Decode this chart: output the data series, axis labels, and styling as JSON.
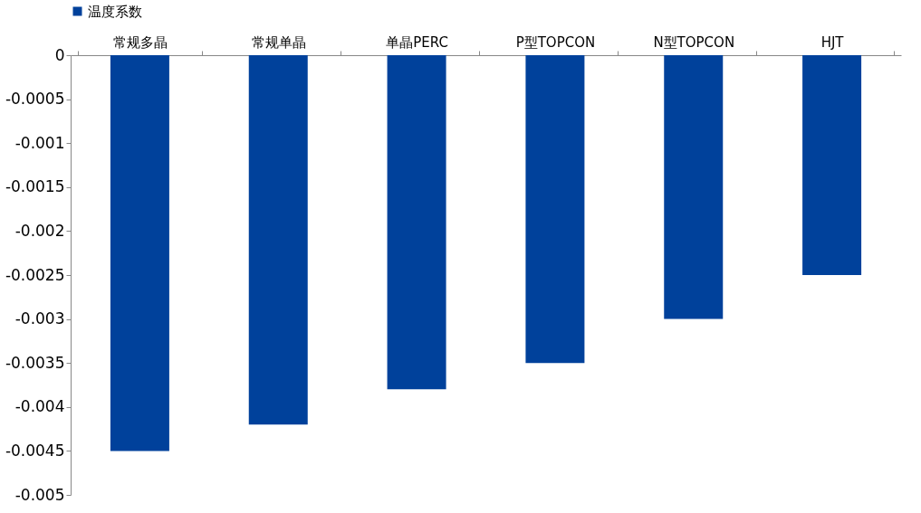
{
  "chart_data": {
    "type": "bar",
    "categories": [
      "常规多晶",
      "常规单晶",
      "单晶PERC",
      "P型TOPCON",
      "N型TOPCON",
      "HJT"
    ],
    "series": [
      {
        "name": "温度系数",
        "color": "#00419b",
        "values": [
          -0.0045,
          -0.0042,
          -0.0038,
          -0.0035,
          -0.003,
          -0.0025
        ]
      }
    ],
    "ylim": [
      -0.005,
      0
    ],
    "yticks": [
      0,
      -0.0005,
      -0.001,
      -0.0015,
      -0.002,
      -0.0025,
      -0.003,
      -0.0035,
      -0.004,
      -0.0045,
      -0.005
    ],
    "grid": false,
    "legend": "top"
  }
}
